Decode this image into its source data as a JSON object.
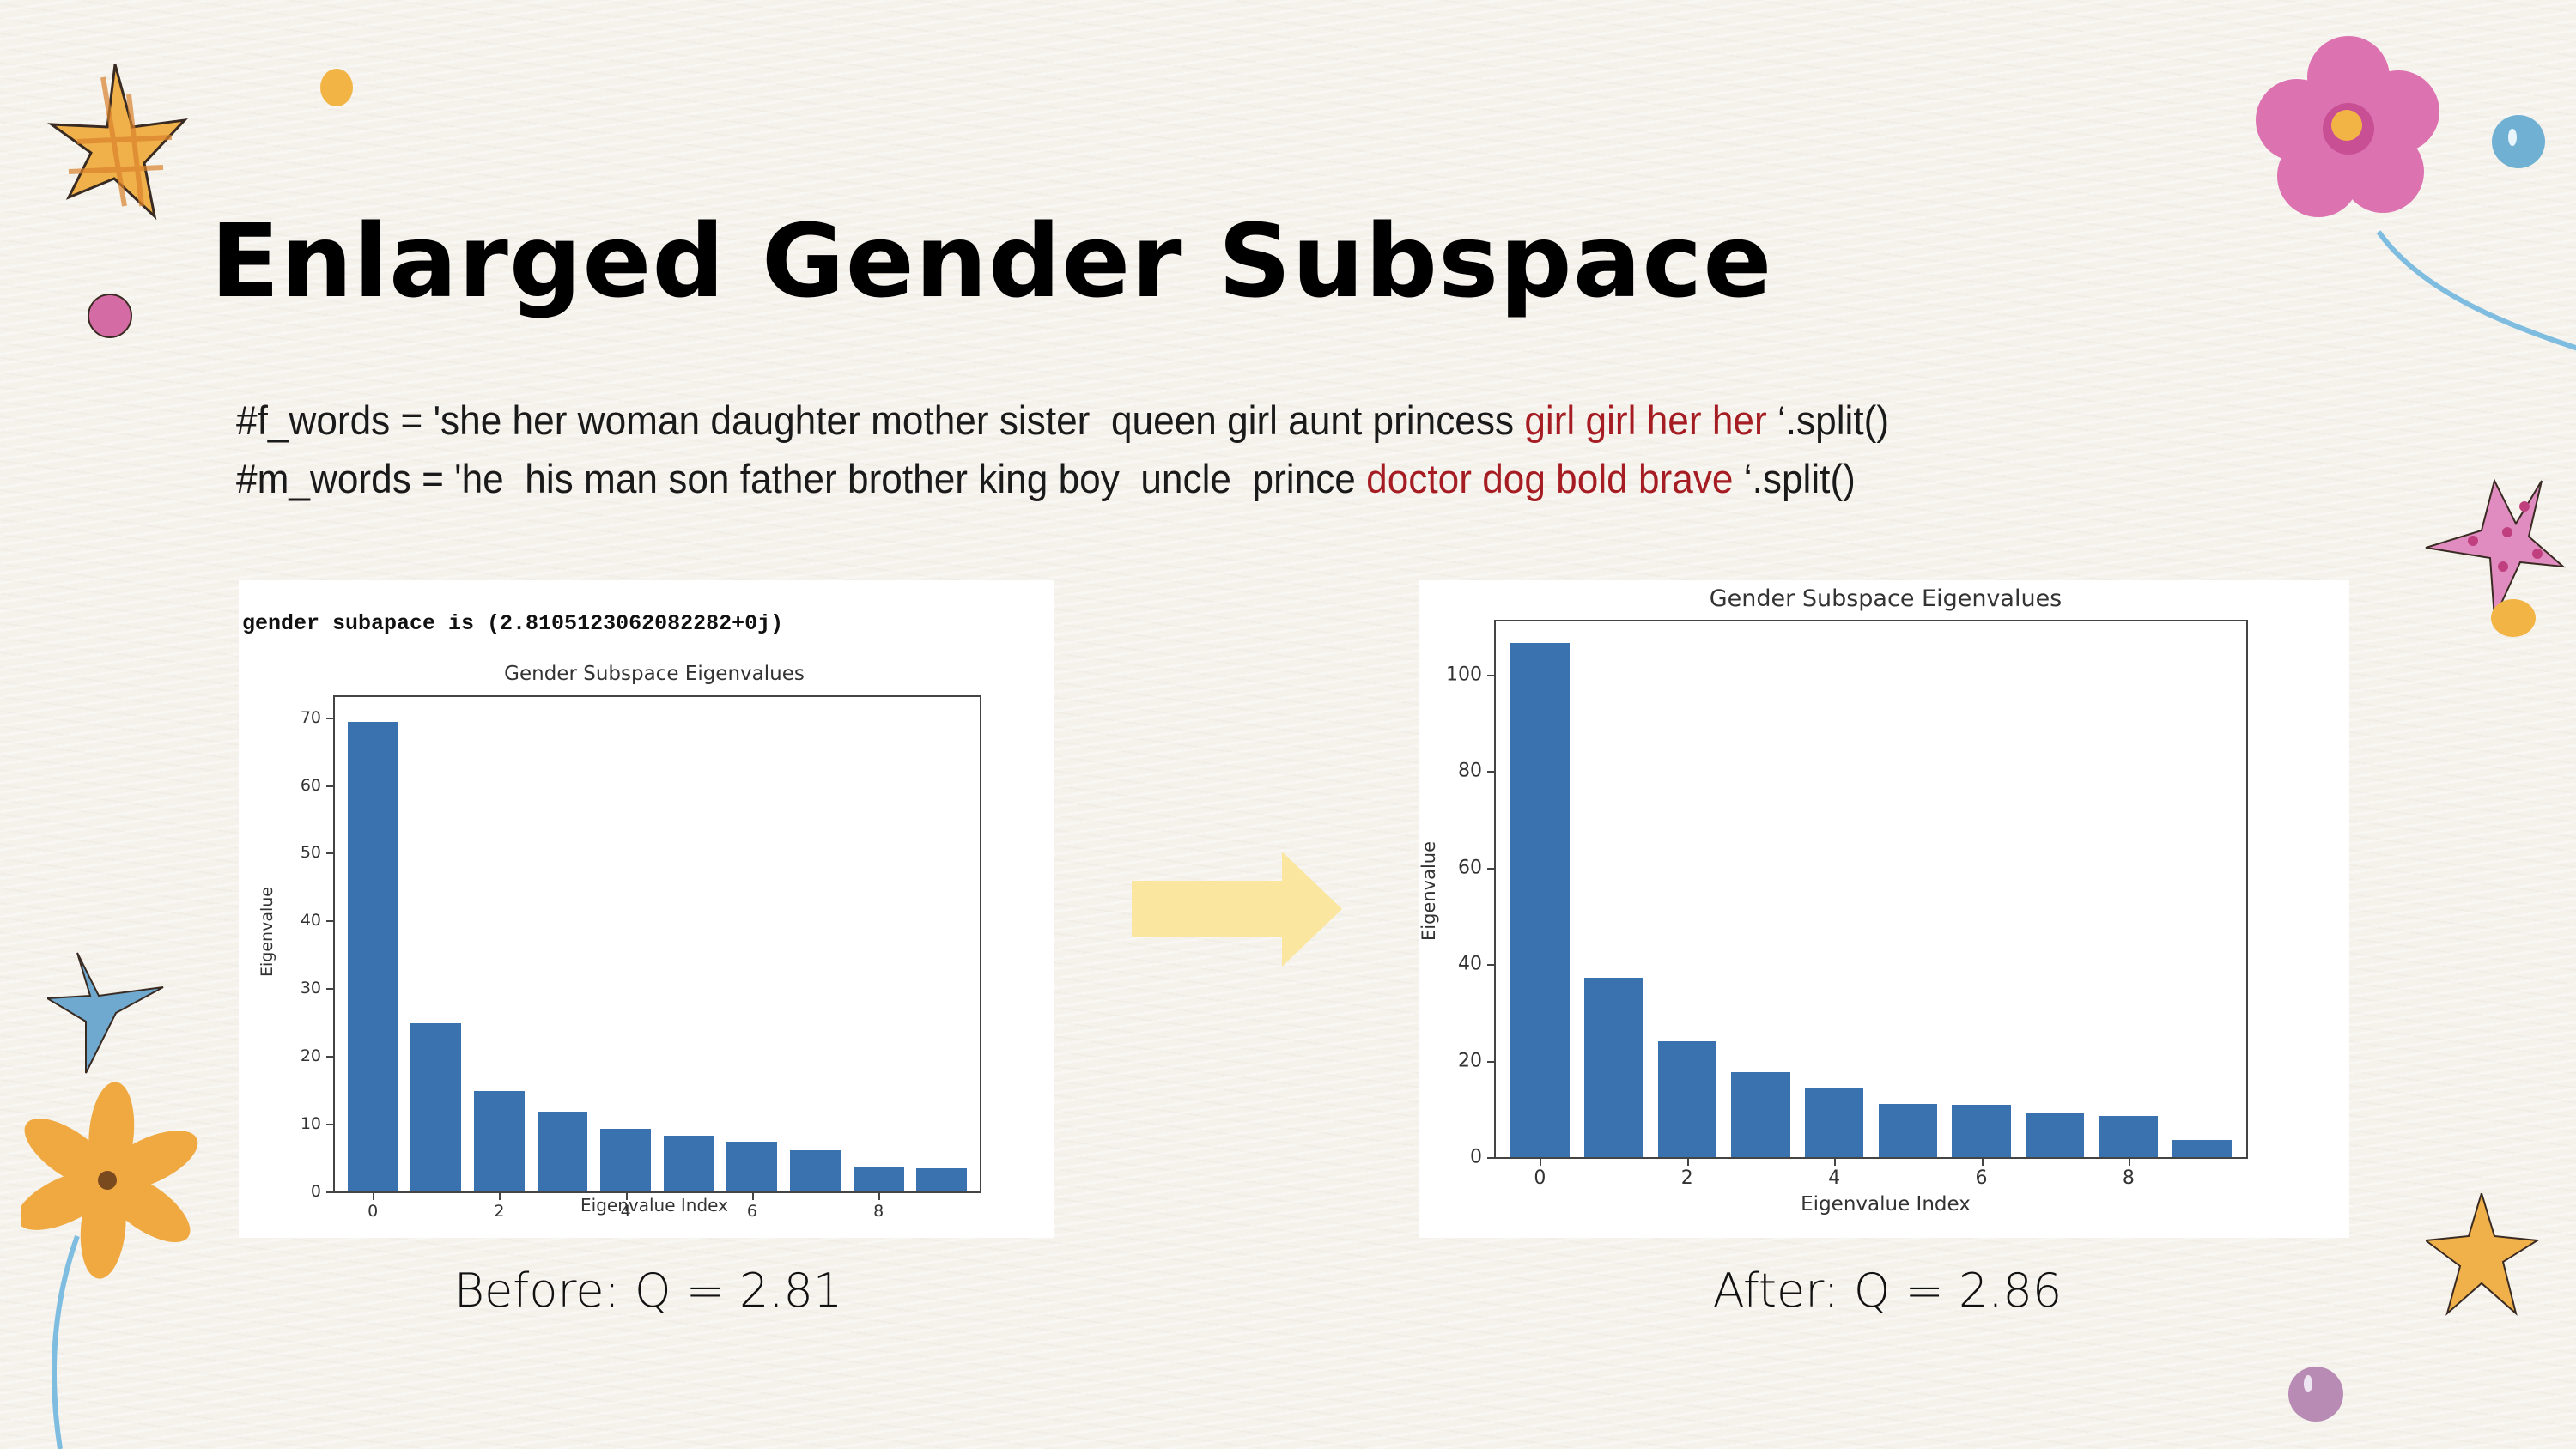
{
  "slide": {
    "title": "Enlarged Gender Subspace",
    "code_lines": [
      {
        "prefix": "#f_words = 'she her woman daughter mother sister  queen girl aunt princess ",
        "highlight": "girl girl her her",
        "suffix": " ‘.split()"
      },
      {
        "prefix": "#m_words = 'he  his man son father brother king boy  uncle  prince ",
        "highlight": "doctor dog bold brave",
        "suffix": " ‘.split()"
      }
    ],
    "console_output": "gender subapace is (2.8105123062082282+0j)",
    "caption_before": "Before: Q = 2.81",
    "caption_after": "After: Q = 2.86",
    "arrow_icon": "right-arrow-icon",
    "colors": {
      "bar": "#3a72b0",
      "highlight_text": "#a51d22",
      "arrow": "#fbe6a0",
      "background": "#f5f2ec"
    }
  },
  "chart_data": [
    {
      "type": "bar",
      "title": "Gender Subspace Eigenvalues",
      "xlabel": "Eigenvalue Index",
      "ylabel": "Eigenvalue",
      "categories": [
        0,
        1,
        2,
        3,
        4,
        5,
        6,
        7,
        8,
        9
      ],
      "values": [
        69.3,
        24.8,
        14.8,
        11.8,
        9.2,
        8.2,
        7.3,
        6.1,
        3.6,
        3.4
      ],
      "ylim": [
        0,
        73
      ],
      "yticks": [
        0,
        10,
        20,
        30,
        40,
        50,
        60,
        70
      ],
      "xticks": [
        0,
        2,
        4,
        6,
        8
      ],
      "grid": false,
      "label": "Before"
    },
    {
      "type": "bar",
      "title": "Gender Subspace Eigenvalues",
      "xlabel": "Eigenvalue Index",
      "ylabel": "Eigenvalue",
      "categories": [
        0,
        1,
        2,
        3,
        4,
        5,
        6,
        7,
        8,
        9
      ],
      "values": [
        106.5,
        37.2,
        24.1,
        17.7,
        14.3,
        11.1,
        10.8,
        9.1,
        8.6,
        3.5
      ],
      "ylim": [
        0,
        111
      ],
      "yticks": [
        0,
        20,
        40,
        60,
        80,
        100
      ],
      "xticks": [
        0,
        2,
        4,
        6,
        8
      ],
      "grid": false,
      "label": "After"
    }
  ]
}
